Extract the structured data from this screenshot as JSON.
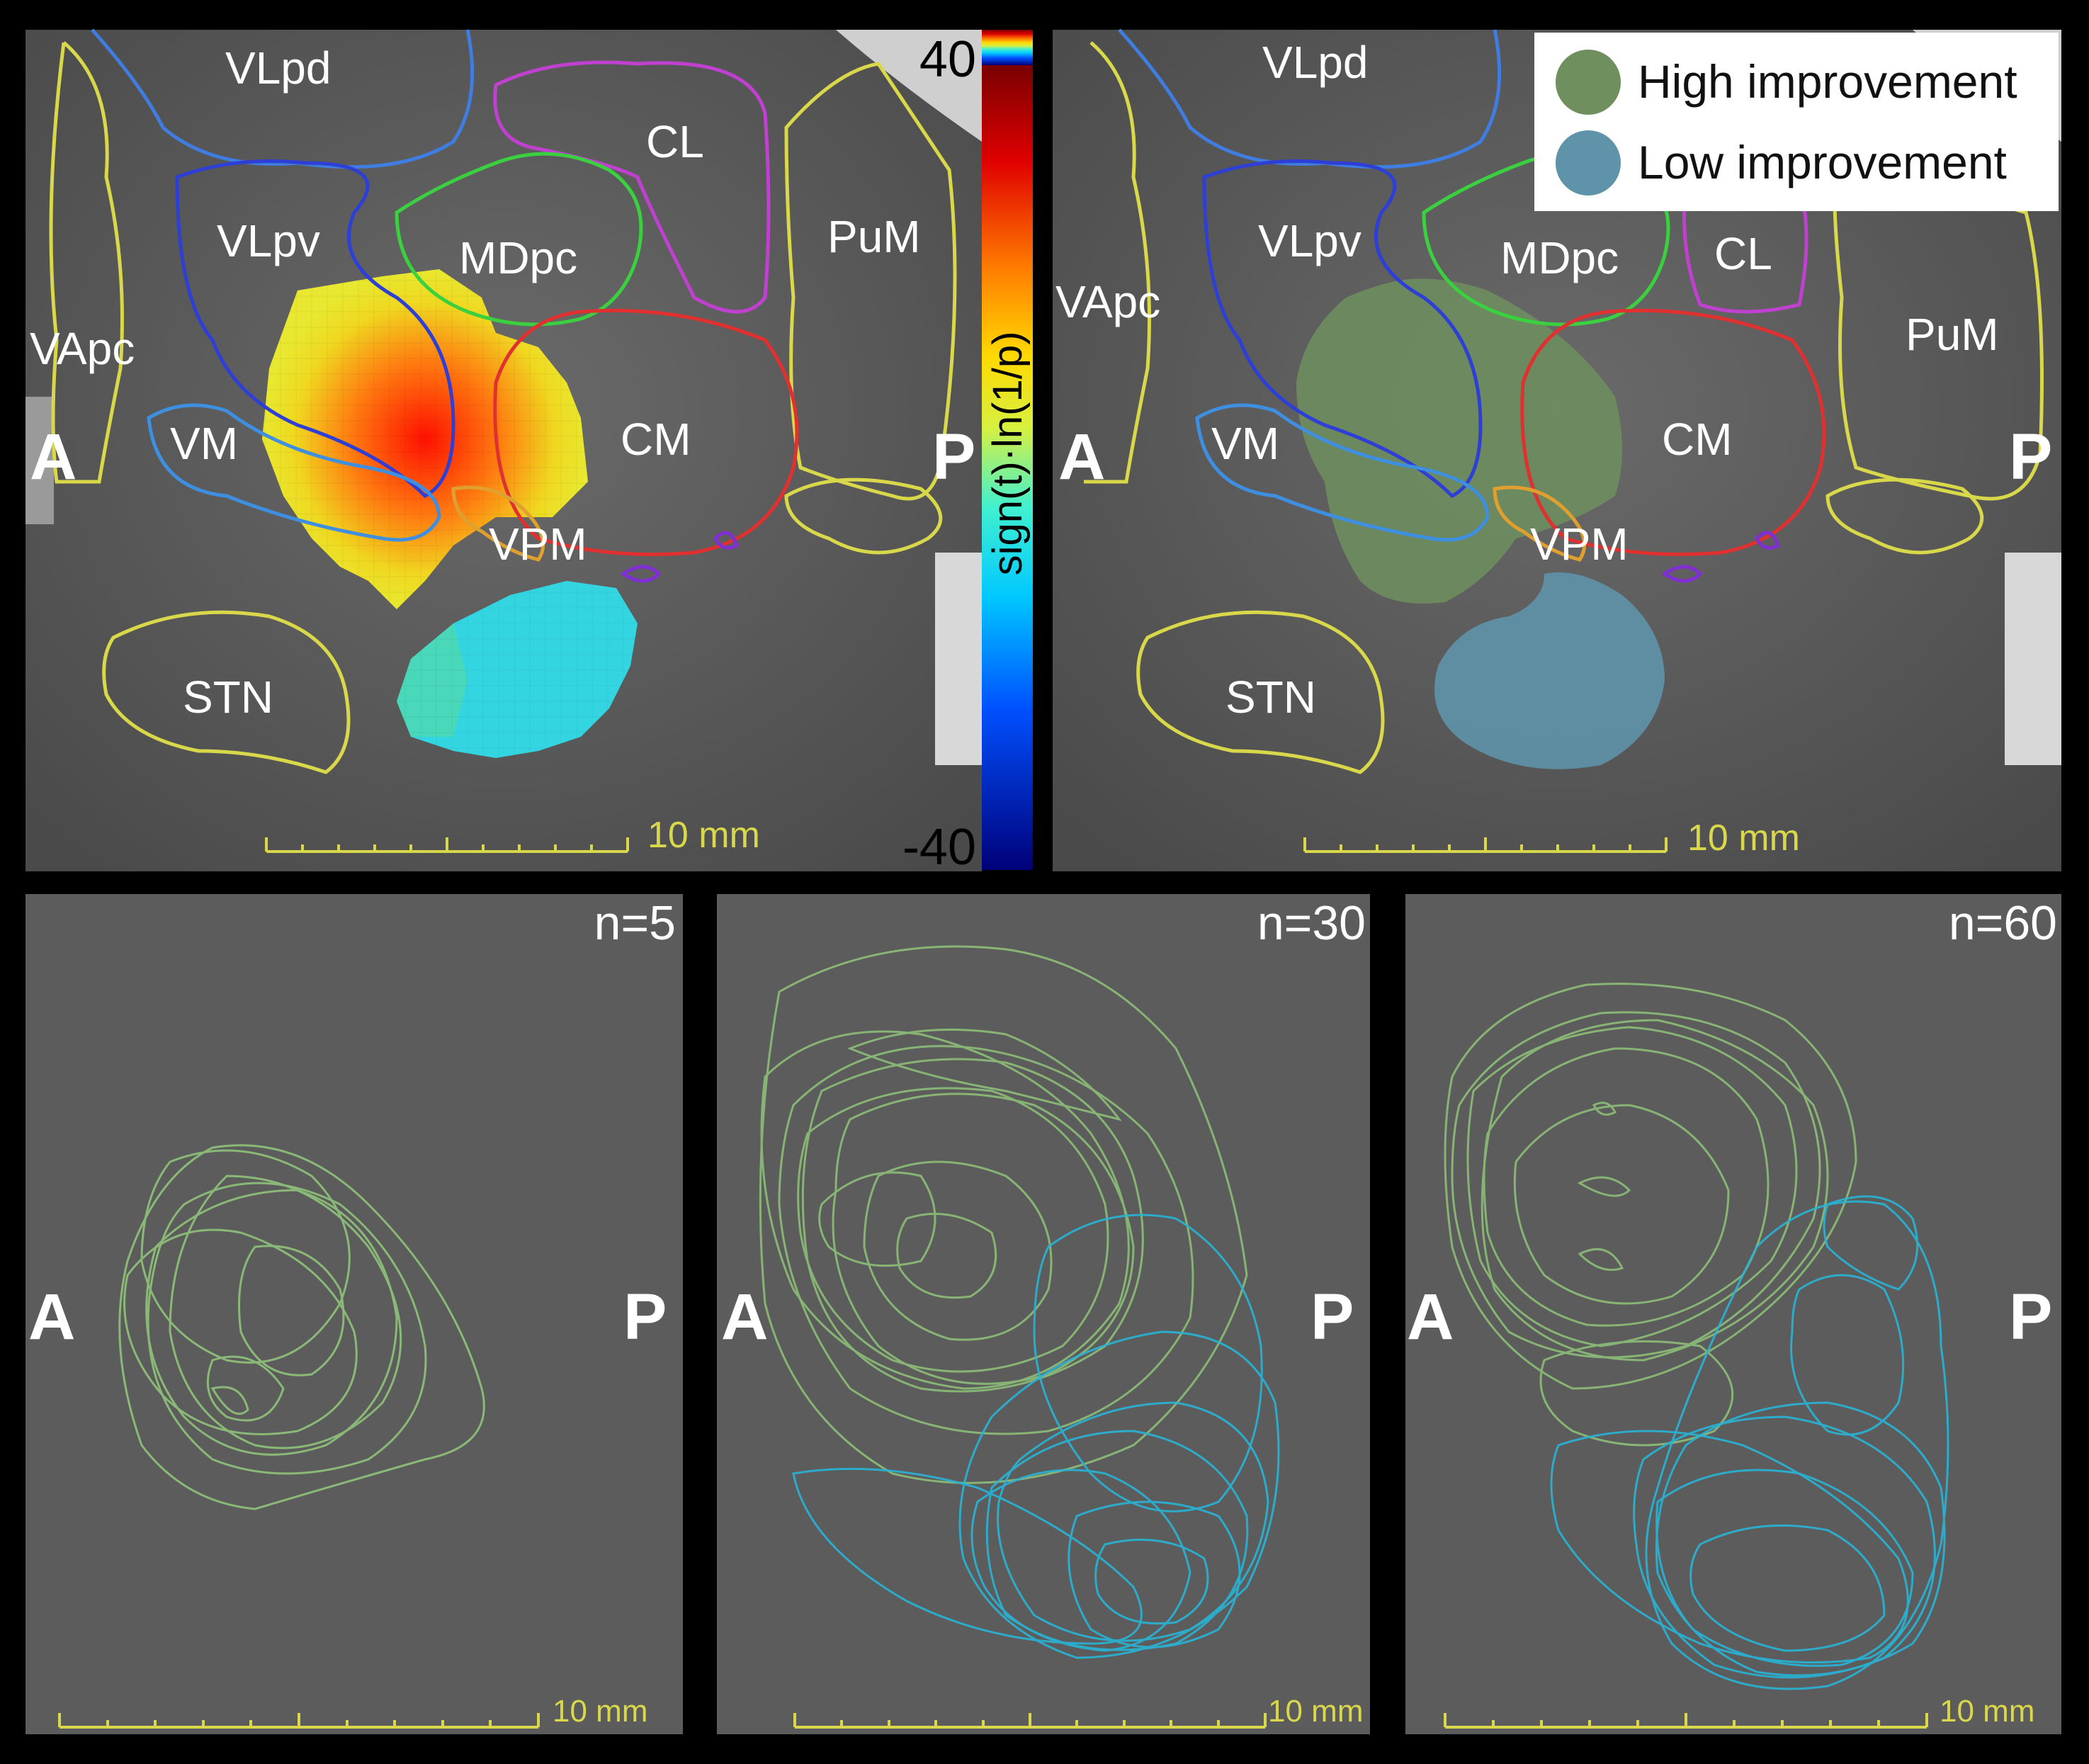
{
  "colorbar": {
    "max": "40",
    "min": "-40",
    "label": "sign(t)·ln(1/p)"
  },
  "legend": {
    "high": "High improvement",
    "low": "Low improvement",
    "high_color": "#6f8f5e",
    "low_color": "#5f93aa"
  },
  "top_left": {
    "nuclei": {
      "vlpd": "VLpd",
      "cl": "CL",
      "vlpv": "VLpv",
      "mdpc": "MDpc",
      "pum": "PuM",
      "vapc": "VApc",
      "vm": "VM",
      "cm": "CM",
      "vpm": "VPM",
      "stn": "STN"
    },
    "anterior": "A",
    "posterior": "P",
    "scale": "10 mm"
  },
  "top_right": {
    "nuclei": {
      "vlpd": "VLpd",
      "cl": "CL",
      "vlpv": "VLpv",
      "mdpc": "MDpc",
      "pum": "PuM",
      "vapc": "VApc",
      "vm": "VM",
      "cm": "CM",
      "vpm": "VPM",
      "stn": "STN"
    },
    "anterior": "A",
    "posterior": "P",
    "scale": "10 mm"
  },
  "bottom": [
    {
      "n": "n=5",
      "anterior": "A",
      "posterior": "P",
      "scale": "10 mm"
    },
    {
      "n": "n=30",
      "anterior": "A",
      "posterior": "P",
      "scale": "10 mm"
    },
    {
      "n": "n=60",
      "anterior": "A",
      "posterior": "P",
      "scale": "10 mm"
    }
  ],
  "colors": {
    "green_outline": "#8fc47a",
    "cyan_outline": "#28b4d6",
    "atlas_yellow": "#d8d84a"
  }
}
